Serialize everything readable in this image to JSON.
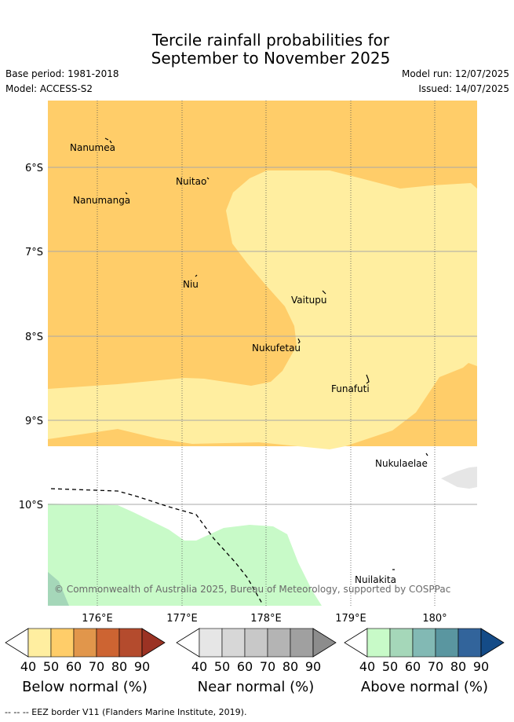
{
  "title": {
    "line1": "Tercile rainfall probabilities for",
    "line2": "September to November 2025"
  },
  "meta": {
    "base_period": "Base period: 1981-2018",
    "model": "Model: ACCESS-S2",
    "model_run": "Model run: 12/07/2025",
    "issued": "Issued: 14/07/2025"
  },
  "map": {
    "latitude_labels": [
      "6°S",
      "7°S",
      "8°S",
      "9°S",
      "10°S"
    ],
    "longitude_labels": [
      "176°E",
      "177°E",
      "178°E",
      "179°E",
      "180°"
    ],
    "places": [
      {
        "name": "Nanumea"
      },
      {
        "name": "Nuitao"
      },
      {
        "name": "Nanumanga"
      },
      {
        "name": "Niu"
      },
      {
        "name": "Vaitupu"
      },
      {
        "name": "Nukufetau"
      },
      {
        "name": "Funafuti"
      },
      {
        "name": "Nukulaelae"
      },
      {
        "name": "Nuilakita"
      }
    ],
    "copyright": "© Commonwealth of Australia 2025, Bureau of Meteorology, supported by COSPPac"
  },
  "colorbars": [
    {
      "title": "Below normal (%)",
      "ticks": [
        "40",
        "50",
        "60",
        "70",
        "80",
        "90"
      ],
      "colors": [
        "#ffeea0",
        "#ffcd69",
        "#e1964b",
        "#cd6432",
        "#b44b2d",
        "#9b3223"
      ]
    },
    {
      "title": "Near normal (%)",
      "ticks": [
        "40",
        "50",
        "60",
        "70",
        "80",
        "90"
      ],
      "colors": [
        "#e6e6e6",
        "#d7d7d7",
        "#c8c8c8",
        "#b4b4b4",
        "#a0a0a0",
        "#8c8c8c"
      ]
    },
    {
      "title": "Above normal (%)",
      "ticks": [
        "40",
        "50",
        "60",
        "70",
        "80",
        "90"
      ],
      "colors": [
        "#c8fac8",
        "#a5d7b9",
        "#82b9b4",
        "#5a96a0",
        "#32649b",
        "#144b87"
      ]
    }
  ],
  "footnote": "-- -- -- EEZ border V11 (Flanders Marine Institute, 2019)."
}
